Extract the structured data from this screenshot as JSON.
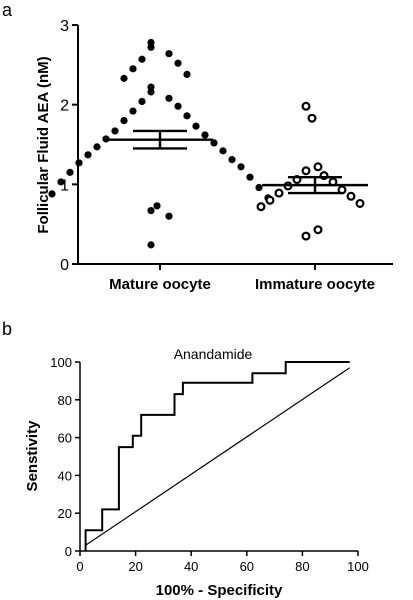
{
  "chart_data": [
    {
      "panel": "a",
      "type": "scatter",
      "title": "",
      "xlabel": "",
      "ylabel": "Follicular Fluid AEA (nM)",
      "ylim": [
        0,
        3
      ],
      "yticks": [
        "0",
        "1",
        "2",
        "3"
      ],
      "categories": [
        "Mature oocyte",
        "Immature oocyte"
      ],
      "series": [
        {
          "category": "Mature oocyte",
          "marker": "filled-circle",
          "values": [
            2.78,
            2.72,
            2.64,
            2.57,
            2.52,
            2.45,
            2.38,
            2.33,
            2.22,
            2.16,
            2.08,
            2.04,
            1.98,
            1.92,
            1.86,
            1.8,
            1.73,
            1.67,
            1.62,
            1.57,
            1.52,
            1.47,
            1.42,
            1.37,
            1.31,
            1.27,
            1.22,
            1.15,
            1.09,
            1.03,
            0.96,
            0.88,
            0.83,
            0.73,
            0.67,
            0.6,
            0.24
          ],
          "mean": 1.56,
          "sem_low": 1.45,
          "sem_high": 1.67
        },
        {
          "category": "Immature oocyte",
          "marker": "open-circle",
          "values": [
            1.98,
            1.83,
            1.22,
            1.17,
            1.11,
            1.06,
            1.03,
            0.98,
            0.93,
            0.89,
            0.85,
            0.8,
            0.76,
            0.72,
            0.43,
            0.35
          ],
          "mean": 0.99,
          "sem_low": 0.89,
          "sem_high": 1.09
        }
      ]
    },
    {
      "panel": "b",
      "type": "line",
      "title": "",
      "xlabel": "100% - Specificity",
      "ylabel": "Senstivity",
      "xlim": [
        0,
        100
      ],
      "ylim": [
        0,
        100
      ],
      "xticks": [
        "0",
        "20",
        "40",
        "60",
        "80",
        "100"
      ],
      "yticks": [
        "0",
        "20",
        "40",
        "60",
        "80",
        "100"
      ],
      "series": [
        {
          "name": "Anandamide",
          "kind": "step",
          "x": [
            2,
            2,
            8,
            8,
            14,
            14,
            19,
            19,
            22,
            22,
            34,
            34,
            37,
            37,
            62,
            62,
            74,
            74,
            97
          ],
          "y": [
            0,
            11,
            11,
            22,
            22,
            55,
            55,
            61,
            61,
            72,
            72,
            83,
            83,
            89,
            89,
            94,
            94,
            100,
            100
          ]
        },
        {
          "name": "",
          "kind": "reference",
          "x": [
            2,
            97
          ],
          "y": [
            3,
            97
          ]
        }
      ]
    }
  ]
}
